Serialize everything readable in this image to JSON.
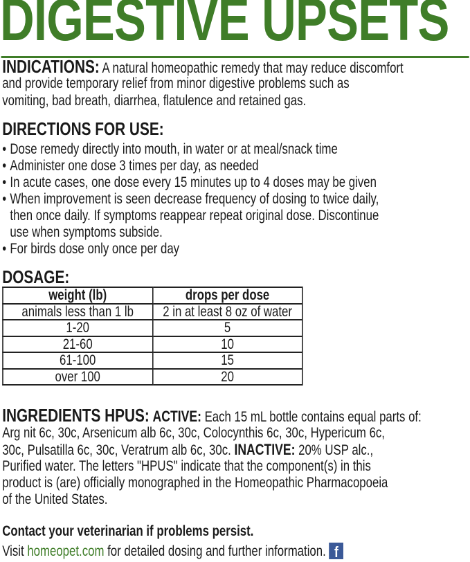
{
  "title": "DIGESTIVE UPSETS",
  "indications": {
    "heading": "INDICATIONS:",
    "lines": [
      "A natural homeopathic remedy that may reduce discomfort",
      "and provide temporary relief from minor digestive problems such as",
      "vomiting, bad breath, diarrhea, flatulence and retained gas."
    ]
  },
  "directions": {
    "heading": "DIRECTIONS FOR USE:",
    "bullets": [
      [
        "Dose remedy directly into mouth, in water or at meal/snack time"
      ],
      [
        "Administer one dose 3 times per day, as needed"
      ],
      [
        "In acute cases, one dose every 15 minutes up to 4 doses may be given"
      ],
      [
        "When improvement is seen decrease frequency of dosing to twice daily,",
        "then once daily. If symptoms reappear repeat original dose. Discontinue",
        "use when symptoms subside."
      ],
      [
        "For birds dose only once per day"
      ]
    ]
  },
  "dosage": {
    "heading": "DOSAGE:",
    "columns": [
      "weight (lb)",
      "drops per dose"
    ],
    "rows": [
      [
        "animals less than 1 lb",
        "2 in at least 8 oz of water"
      ],
      [
        "1-20",
        "5"
      ],
      [
        "21-60",
        "10"
      ],
      [
        "61-100",
        "15"
      ],
      [
        "over 100",
        "20"
      ]
    ]
  },
  "ingredients": {
    "heading": "INGREDIENTS HPUS:",
    "active_label": "ACTIVE:",
    "line1": "Each 15 mL bottle contains equal parts of:",
    "line2": "Arg nit 6c, 30c, Arsenicum alb 6c, 30c, Colocynthis 6c, 30c, Hypericum 6c,",
    "line3a": "30c, Pulsatilla 6c, 30c, Veratrum alb 6c, 30c.",
    "inactive_label": "INACTIVE:",
    "line3b": "20% USP alc.,",
    "line4": "Purified water. The letters \"HPUS\" indicate that the component(s) in this",
    "line5": "product is (are) officially monographed in the Homeopathic Pharmacopoeia",
    "line6": "of the United States."
  },
  "footer": {
    "contact": "Contact your veterinarian if problems persist.",
    "visit": "Visit",
    "link": "homeopet.com",
    "rest": "for detailed dosing and further information.",
    "icon": "facebook-icon",
    "link_color": "#3f7d28"
  },
  "colors": {
    "brand_green": "#3f7d28"
  }
}
